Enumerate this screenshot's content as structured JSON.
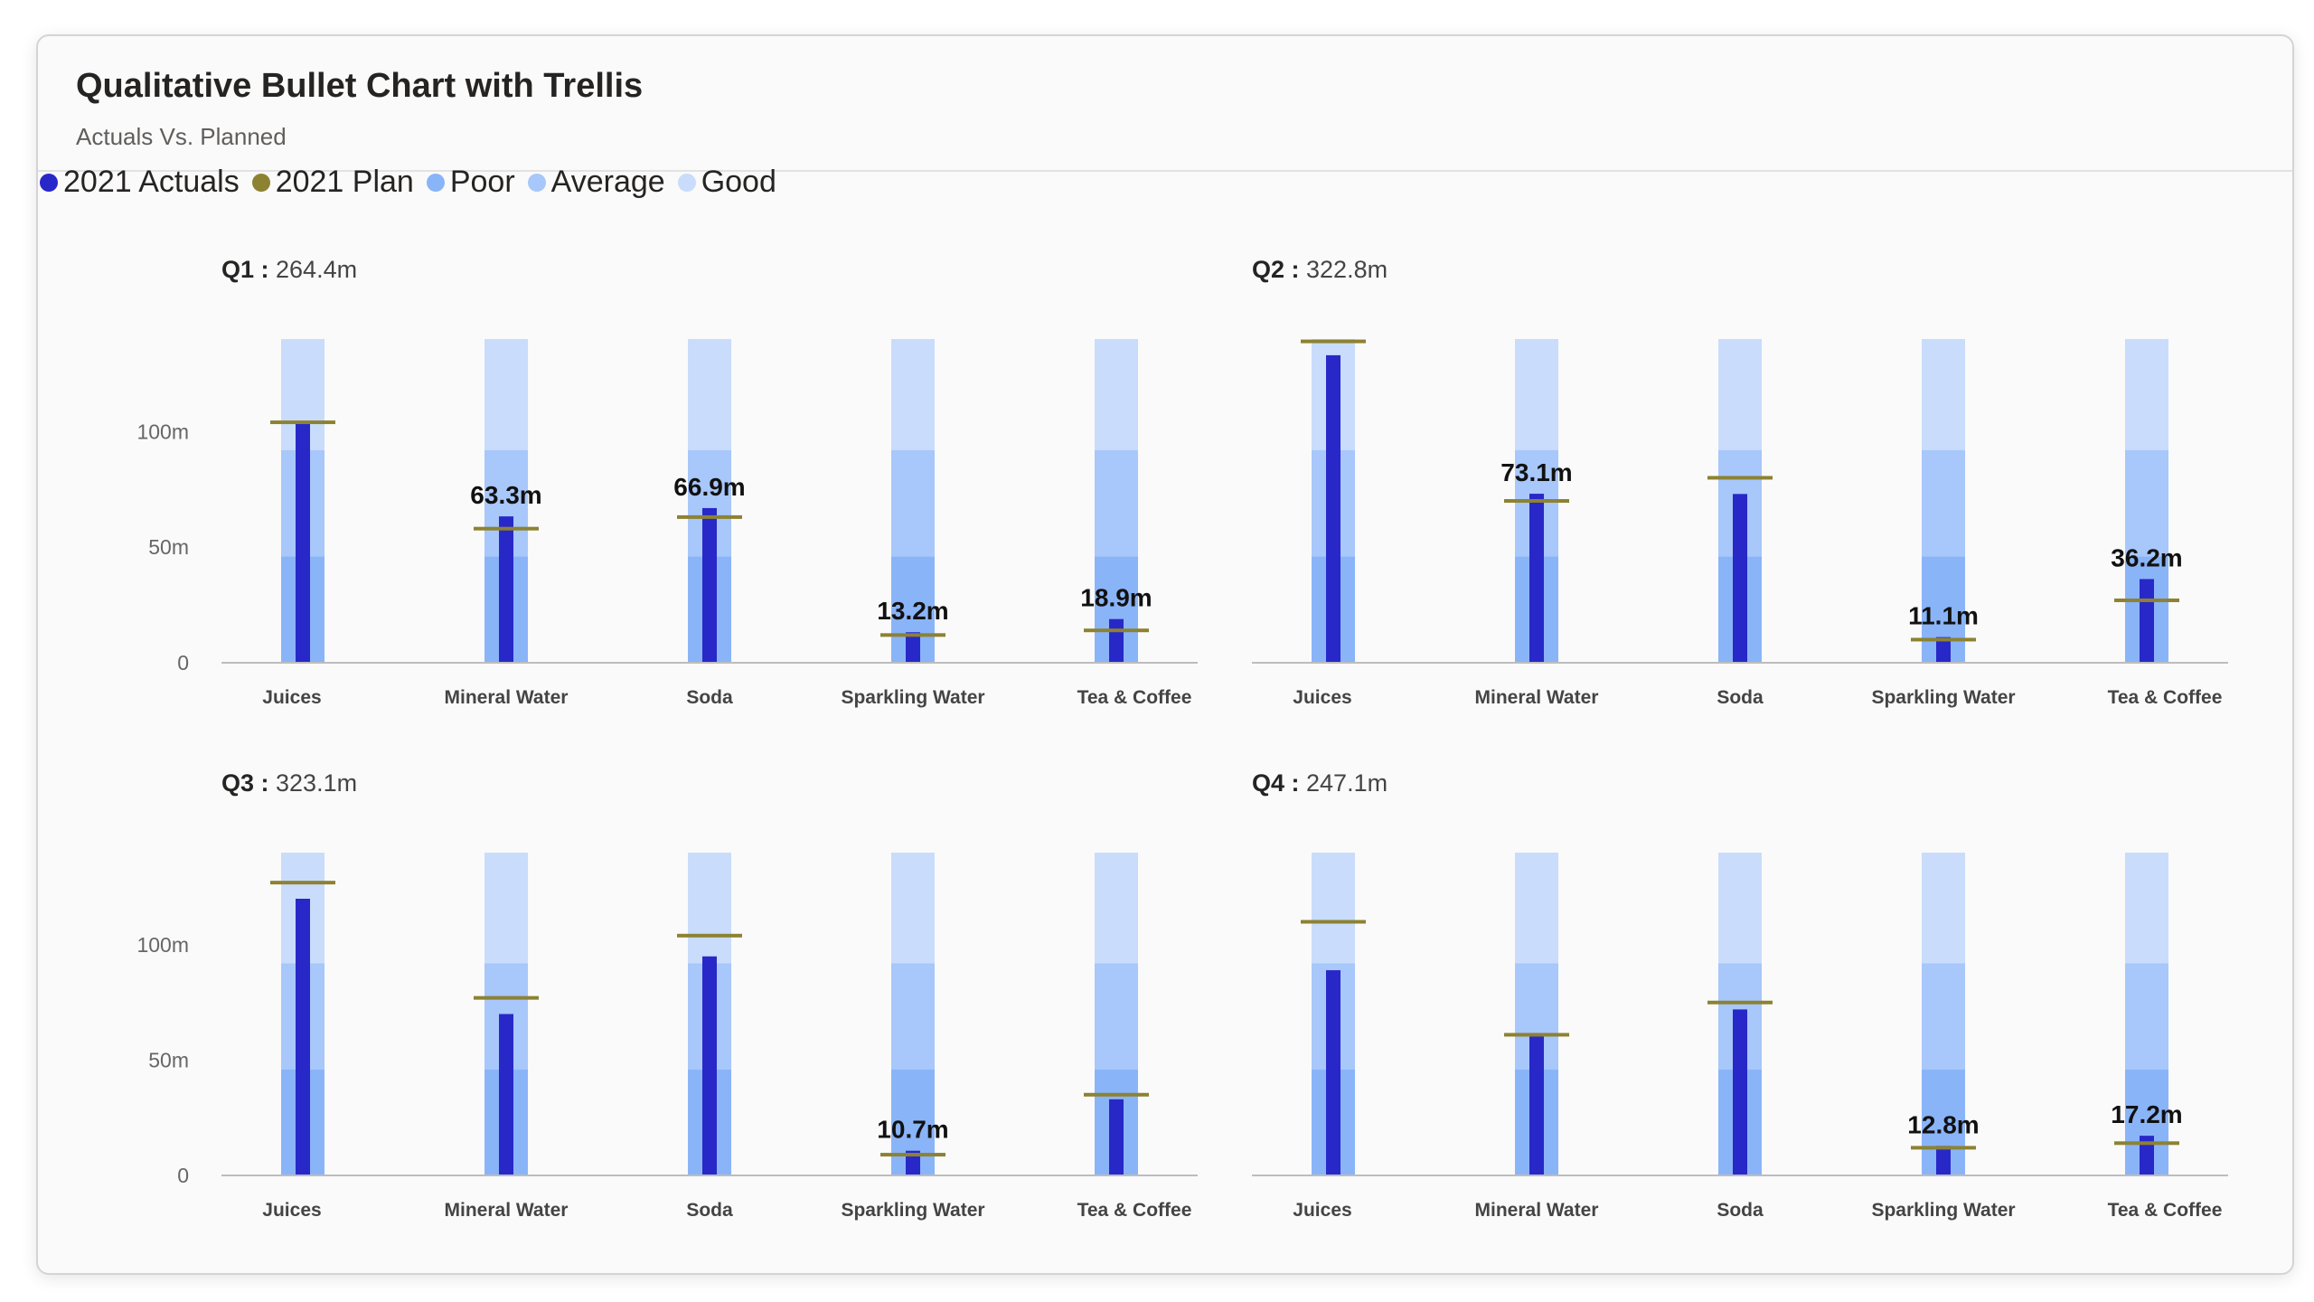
{
  "header": {
    "title": "Qualitative Bullet Chart with Trellis",
    "subtitle": "Actuals Vs. Planned"
  },
  "legend": [
    {
      "label": "2021 Actuals",
      "color": "#2828c8"
    },
    {
      "label": "2021 Plan",
      "color": "#8c8232"
    },
    {
      "label": "Poor",
      "color": "#8ab4f8"
    },
    {
      "label": "Average",
      "color": "#a8c7fa"
    },
    {
      "label": "Good",
      "color": "#c9dcfb"
    }
  ],
  "colors": {
    "actual": "#2828c8",
    "plan": "#8c8232",
    "poor": "#8ab4f8",
    "average": "#a8c7fa",
    "good": "#c9dcfb",
    "axis_label": "#666666",
    "category_label": "#444444"
  },
  "chart_data": {
    "type": "bar",
    "subtype": "bullet-trellis",
    "categories": [
      "Juices",
      "Mineral Water",
      "Soda",
      "Sparkling Water",
      "Tea & Coffee"
    ],
    "ylim": [
      0,
      140
    ],
    "yticks": [
      {
        "value": 0,
        "label": "0"
      },
      {
        "value": 50,
        "label": "50m"
      },
      {
        "value": 100,
        "label": "100m"
      }
    ],
    "ranges": {
      "poor": [
        0,
        46
      ],
      "average": [
        46,
        92
      ],
      "good": [
        92,
        140
      ]
    },
    "panels": [
      {
        "quarter": "Q1",
        "total": "264.4m",
        "actual": [
          104,
          63.3,
          66.9,
          13.2,
          18.9
        ],
        "plan": [
          104,
          58,
          63,
          12,
          14
        ],
        "data_labels": [
          "",
          "63.3m",
          "66.9m",
          "13.2m",
          "18.9m"
        ]
      },
      {
        "quarter": "Q2",
        "total": "322.8m",
        "actual": [
          133,
          73.1,
          73,
          11.1,
          36.2
        ],
        "plan": [
          139,
          70,
          80,
          10,
          27
        ],
        "data_labels": [
          "",
          "73.1m",
          "",
          "11.1m",
          "36.2m"
        ]
      },
      {
        "quarter": "Q3",
        "total": "323.1m",
        "actual": [
          120,
          70,
          95,
          10.7,
          33
        ],
        "plan": [
          127,
          77,
          104,
          9,
          35
        ],
        "data_labels": [
          "",
          "",
          "",
          "10.7m",
          ""
        ]
      },
      {
        "quarter": "Q4",
        "total": "247.1m",
        "actual": [
          89,
          61,
          72,
          12.8,
          17.2
        ],
        "plan": [
          110,
          61,
          75,
          12,
          14
        ],
        "data_labels": [
          "",
          "",
          "",
          "12.8m",
          "17.2m"
        ]
      }
    ]
  }
}
